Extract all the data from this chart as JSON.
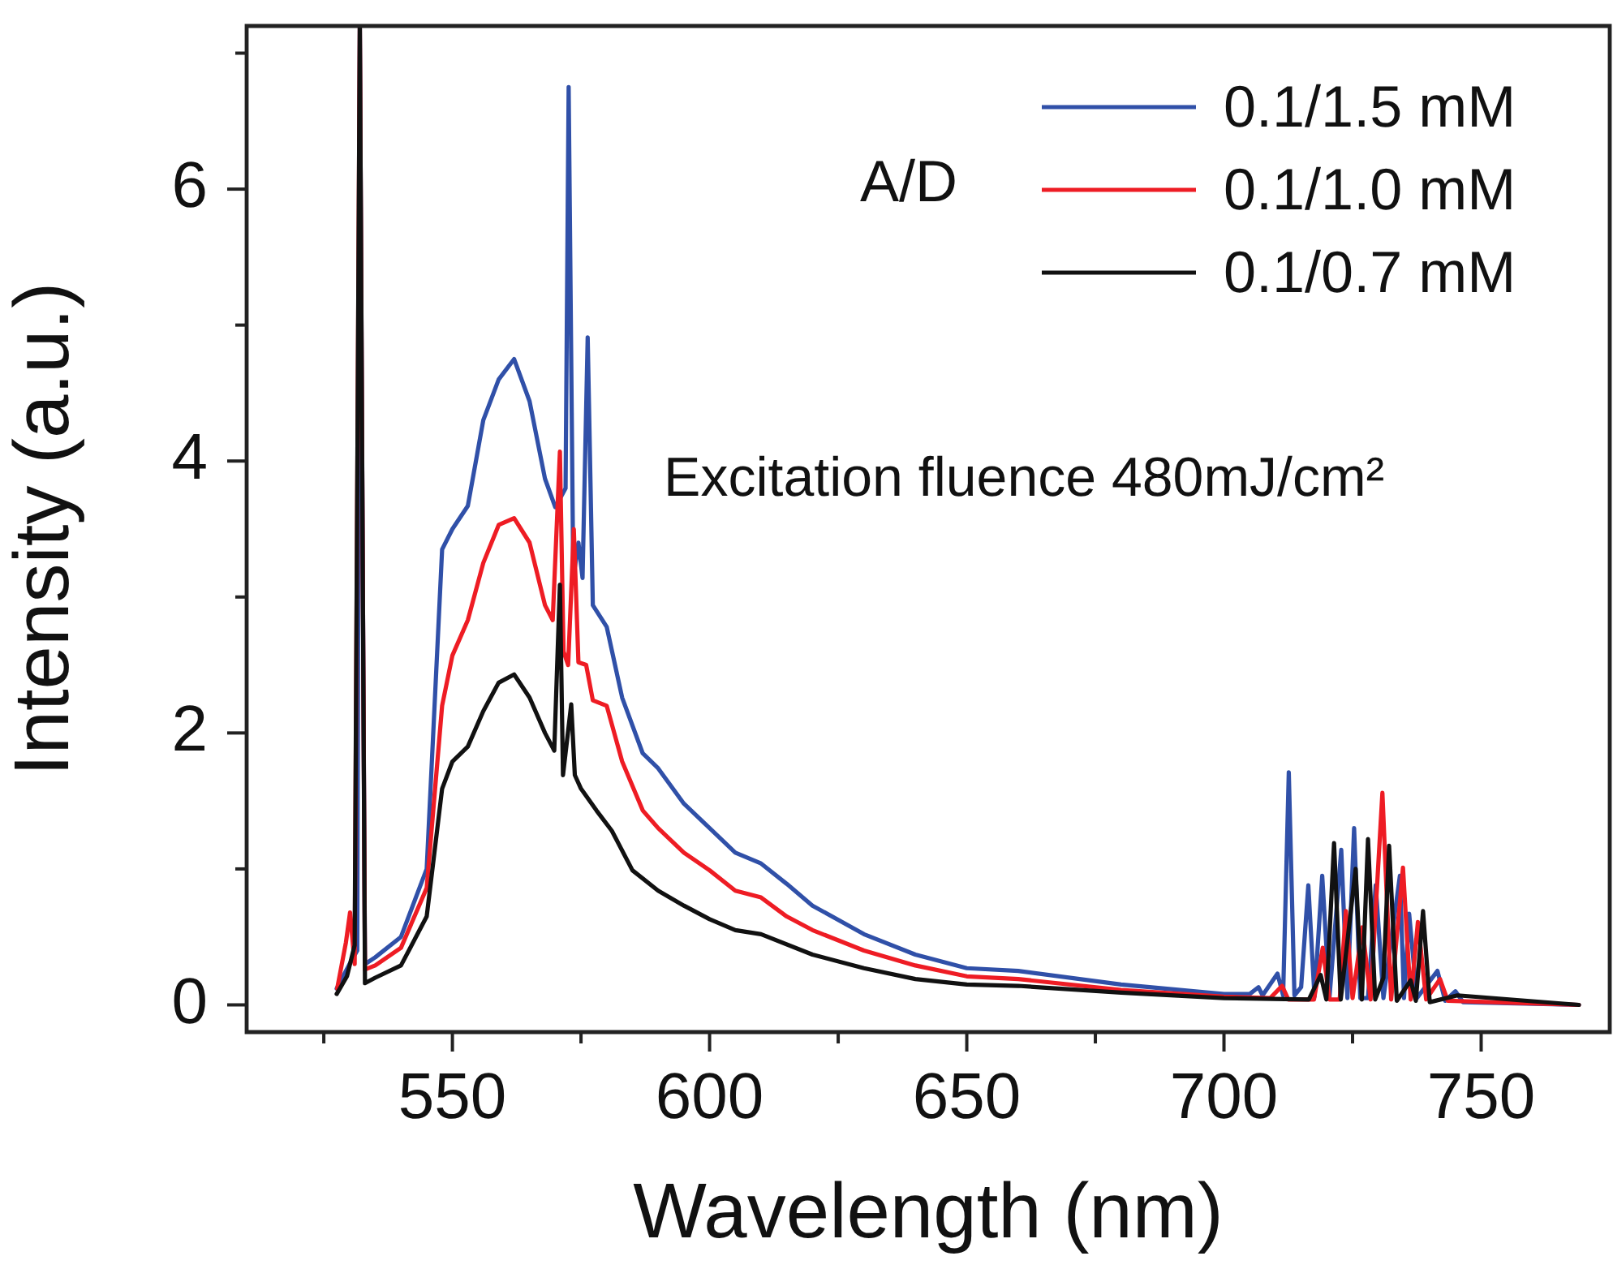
{
  "chart_data": {
    "type": "line",
    "xlabel": "Wavelength (nm)",
    "ylabel": "Intensity (a.u.)",
    "annotations": [
      "A/D",
      "Excitation fluence 480mJ/cm²"
    ],
    "xlim": [
      510,
      775
    ],
    "ylim": [
      -0.2,
      7.2
    ],
    "xticks": [
      {
        "value": 525,
        "label": null
      },
      550,
      {
        "value": 575,
        "label": null
      },
      600,
      {
        "value": 625,
        "label": null
      },
      650,
      {
        "value": 675,
        "label": null
      },
      700,
      {
        "value": 725,
        "label": null
      },
      750
    ],
    "yticks": [
      0,
      {
        "value": 1,
        "label": null
      },
      2,
      {
        "value": 3,
        "label": null
      },
      4,
      {
        "value": 5,
        "label": null
      },
      6,
      {
        "value": 7,
        "label": null
      }
    ],
    "grid": false,
    "legend": "top right",
    "marker": "none",
    "line_style": "solid",
    "series": [
      {
        "name": "0.1/1.5 mM",
        "color": "#3050a8",
        "x": [
          527.5,
          530,
          531.5,
          532,
          533,
          535,
          540,
          545,
          548,
          550,
          553,
          556,
          559,
          562,
          565,
          568,
          570,
          572,
          572.6,
          573.5,
          574.5,
          575.3,
          576.3,
          577.3,
          580,
          583,
          587,
          590,
          595,
          600,
          605,
          610,
          615,
          620,
          630,
          640,
          650,
          660,
          680,
          700,
          705,
          706.7,
          707.5,
          710.4,
          711.5,
          712.6,
          713.7,
          715,
          716.4,
          717.6,
          719.1,
          720.5,
          722.8,
          724,
          725.3,
          726.5,
          728,
          729.5,
          731,
          734.2,
          735,
          736,
          737.5,
          741.5,
          743,
          745,
          746.5,
          769
        ],
        "values": [
          0.12,
          0.3,
          0.4,
          7.2,
          0.3,
          0.35,
          0.5,
          1.0,
          3.35,
          3.5,
          3.67,
          4.3,
          4.6,
          4.75,
          4.44,
          3.87,
          3.66,
          3.8,
          6.75,
          3.14,
          3.4,
          3.14,
          4.91,
          2.94,
          2.78,
          2.26,
          1.85,
          1.74,
          1.48,
          1.3,
          1.12,
          1.04,
          0.89,
          0.73,
          0.52,
          0.37,
          0.27,
          0.25,
          0.15,
          0.08,
          0.08,
          0.13,
          0.07,
          0.23,
          0.07,
          1.71,
          0.07,
          0.13,
          0.88,
          0.06,
          0.95,
          0.05,
          1.14,
          0.05,
          1.3,
          0.05,
          0.05,
          0.88,
          0.05,
          0.95,
          0.05,
          0.67,
          0.05,
          0.25,
          0.03,
          0.1,
          0.02,
          0.0
        ]
      },
      {
        "name": "0.1/1.0 mM",
        "color": "#ee1c24",
        "x": [
          527.6,
          529.3,
          530.1,
          531,
          532,
          533,
          535,
          540,
          545,
          548,
          550,
          553,
          556,
          559,
          562,
          565,
          568,
          569.5,
          570.9,
          571.6,
          572.5,
          573.6,
          574.5,
          576,
          577.3,
          580,
          583,
          587,
          590,
          595,
          600,
          605,
          610,
          615,
          620,
          630,
          640,
          650,
          660,
          680,
          700,
          709,
          711.3,
          712.5,
          717.5,
          719.2,
          720.5,
          722.5,
          723.7,
          725,
          726.9,
          728.5,
          730.8,
          732.5,
          734.8,
          736.3,
          737.7,
          739.3,
          742,
          743.5,
          769
        ],
        "values": [
          0.12,
          0.46,
          0.68,
          0.3,
          7.2,
          0.26,
          0.29,
          0.42,
          0.86,
          2.2,
          2.57,
          2.83,
          3.25,
          3.53,
          3.58,
          3.4,
          2.94,
          2.83,
          4.07,
          2.6,
          2.5,
          3.5,
          2.52,
          2.5,
          2.24,
          2.2,
          1.79,
          1.43,
          1.3,
          1.12,
          0.99,
          0.84,
          0.79,
          0.65,
          0.55,
          0.4,
          0.29,
          0.21,
          0.19,
          0.11,
          0.06,
          0.05,
          0.14,
          0.04,
          0.04,
          0.42,
          0.04,
          0.04,
          0.69,
          0.05,
          0.57,
          0.04,
          1.56,
          0.04,
          1.01,
          0.04,
          0.61,
          0.04,
          0.19,
          0.03,
          0.0
        ]
      },
      {
        "name": "0.1/0.7 mM",
        "color": "#111111",
        "x": [
          527.5,
          529.5,
          531,
          532,
          533,
          535,
          540,
          545,
          548,
          550,
          553,
          556,
          559,
          562,
          565,
          568,
          569.8,
          570.9,
          571.5,
          573.1,
          573.8,
          575,
          578,
          581,
          585,
          590,
          595,
          600,
          605,
          610,
          620,
          630,
          640,
          650,
          660,
          680,
          700,
          716.5,
          718.8,
          719.9,
          721.4,
          722.7,
          725.6,
          726.8,
          728,
          729.4,
          731,
          732.1,
          733.6,
          736.3,
          737.3,
          738.7,
          740,
          745.4,
          769
        ],
        "values": [
          0.08,
          0.21,
          0.44,
          7.2,
          0.16,
          0.2,
          0.29,
          0.65,
          1.59,
          1.79,
          1.9,
          2.16,
          2.37,
          2.43,
          2.26,
          2.0,
          1.87,
          3.09,
          1.69,
          2.21,
          1.69,
          1.59,
          1.43,
          1.28,
          0.99,
          0.84,
          0.73,
          0.63,
          0.55,
          0.52,
          0.37,
          0.27,
          0.19,
          0.15,
          0.14,
          0.09,
          0.05,
          0.04,
          0.22,
          0.04,
          1.19,
          0.04,
          1.0,
          0.04,
          1.22,
          0.04,
          0.2,
          1.17,
          0.03,
          0.18,
          0.03,
          0.69,
          0.02,
          0.07,
          0.0
        ]
      }
    ]
  }
}
